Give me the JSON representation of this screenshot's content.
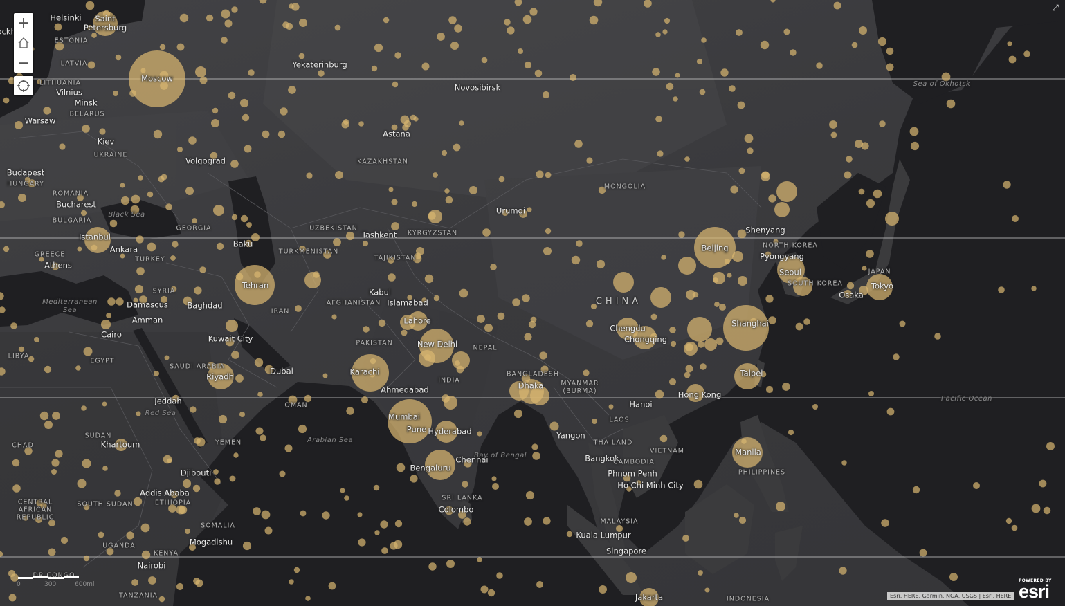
{
  "map": {
    "basemap": "dark gray canvas",
    "colors": {
      "land": "#3b3b3d",
      "water": "#1f1f22",
      "symbol": "#d8b670",
      "gridline": "#bdbdbd"
    },
    "labels": {
      "cities": [
        "Helsinki",
        "Saint Petersburg",
        "Moscow",
        "Vilnius",
        "Minsk",
        "Warsaw",
        "Kiev",
        "Volgograd",
        "Budapest",
        "Bucharest",
        "Istanbul",
        "Ankara",
        "Athens",
        "Baku",
        "Tehran",
        "Baghdad",
        "Damascus",
        "Amman",
        "Cairo",
        "Kuwait City",
        "Riyadh",
        "Dubai",
        "Jeddah",
        "Khartoum",
        "Djibouti",
        "Addis Ababa",
        "Mogadishu",
        "Nairobi",
        "Yekaterinburg",
        "Novosibirsk",
        "Astana",
        "Tashkent",
        "Kabul",
        "Islamabad",
        "Lahore",
        "New Delhi",
        "Karachi",
        "Ahmedabad",
        "Mumbai",
        "Pune",
        "Hyderabad",
        "Bengaluru",
        "Chennai",
        "Colombo",
        "Dhaka",
        "Yangon",
        "Bangkok",
        "Hanoi",
        "Phnom Penh",
        "Ho Chi Minh City",
        "Kuala Lumpur",
        "Singapore",
        "Jakarta",
        "Urumqi",
        "Chengdu",
        "Chongqing",
        "Beijing",
        "Shenyang",
        "Pyongyang",
        "Seoul",
        "Shanghai",
        "Hong Kong",
        "Taipei",
        "Manila",
        "Osaka",
        "Tokyo",
        "Stockholm"
      ],
      "countries": [
        "ESTONIA",
        "LATVIA",
        "LITHUANIA",
        "BELARUS",
        "UKRAINE",
        "ROMANIA",
        "HUNGARY",
        "BULGARIA",
        "GREECE",
        "TURKEY",
        "GEORGIA",
        "SYRIA",
        "IRAN",
        "SAUDI ARABIA",
        "EGYPT",
        "LIBYA",
        "SUDAN",
        "CHAD",
        "YEMEN",
        "OMAN",
        "SOUTH SUDAN",
        "CENTRAL AFRICAN REPUBLIC",
        "ETHIOPIA",
        "SOMALIA",
        "UGANDA",
        "KENYA",
        "TANZANIA",
        "DR CONGO",
        "KAZAKHSTAN",
        "UZBEKISTAN",
        "TURKMENISTAN",
        "TAJIKISTAN",
        "KYRGYZSTAN",
        "AFGHANISTAN",
        "PAKISTAN",
        "NEPAL",
        "INDIA",
        "BANGLADESH",
        "MYANMAR (BURMA)",
        "LAOS",
        "THAILAND",
        "VIETNAM",
        "CAMBODIA",
        "MALAYSIA",
        "INDONESIA",
        "PHILIPPINES",
        "MONGOLIA",
        "NORTH KOREA",
        "SOUTH KOREA",
        "JAPAN",
        "SRI LANKA",
        "CHINA"
      ],
      "water": [
        "Black Sea",
        "Mediterranean Sea",
        "Red Sea",
        "Arabian Sea",
        "Bay of Bengal",
        "Pacific Ocean",
        "Sea of Okhotsk"
      ]
    },
    "controls": {
      "zoom_in": "+",
      "home": "home",
      "zoom_out": "−",
      "locate": "locate"
    },
    "scale_bar": {
      "labels": [
        "0",
        "300",
        "600mi"
      ]
    },
    "attribution": "Esri, HERE, Garmin, NGA, USGS | Esri, HERE",
    "logo": {
      "powered_by": "POWERED BY",
      "brand": "esri"
    }
  }
}
